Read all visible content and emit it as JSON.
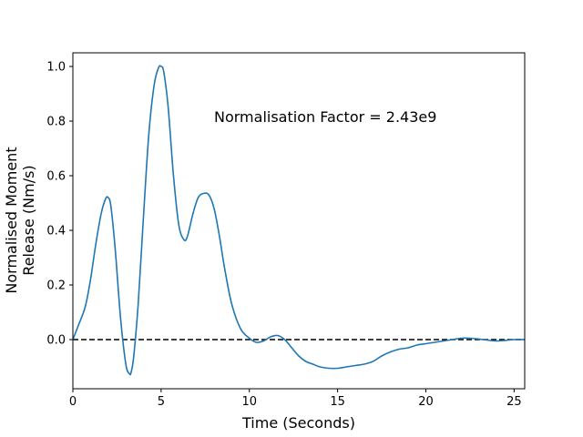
{
  "chart_data": {
    "type": "line",
    "xlabel": "Time (Seconds)",
    "ylabel_lines": [
      "Normalised Moment",
      "Release (Nm/s)"
    ],
    "annotation": "Normalisation Factor = 2.43e9",
    "xlim": [
      0,
      25.6
    ],
    "ylim": [
      -0.18,
      1.05
    ],
    "xticks": [
      0,
      5,
      10,
      15,
      20,
      25
    ],
    "yticks": [
      0.0,
      0.2,
      0.4,
      0.6,
      0.8,
      1.0
    ],
    "xtick_labels": [
      "0",
      "5",
      "10",
      "15",
      "20",
      "25"
    ],
    "ytick_labels": [
      "0.0",
      "0.2",
      "0.4",
      "0.6",
      "0.8",
      "1.0"
    ],
    "grid": false,
    "reference_line": {
      "y": 0,
      "style": "dashed",
      "color": "#000000"
    },
    "series": [
      {
        "color": "#1f77b4",
        "x": [
          0,
          0.3,
          0.7,
          1.0,
          1.3,
          1.6,
          1.85,
          2.0,
          2.15,
          2.4,
          2.7,
          3.0,
          3.2,
          3.3,
          3.45,
          3.7,
          4.0,
          4.3,
          4.6,
          4.85,
          5.0,
          5.15,
          5.4,
          5.7,
          6.0,
          6.3,
          6.5,
          6.8,
          7.1,
          7.4,
          7.7,
          8.0,
          8.3,
          8.6,
          9.0,
          9.5,
          10.0,
          10.4,
          10.8,
          11.2,
          11.6,
          12.0,
          12.4,
          12.8,
          13.2,
          13.6,
          14.0,
          14.5,
          15.0,
          15.5,
          16.0,
          16.5,
          17.0,
          17.5,
          18.0,
          18.5,
          19.0,
          19.5,
          20.0,
          20.5,
          21.0,
          21.5,
          22.0,
          22.5,
          23.0,
          23.5,
          24.0,
          24.5,
          25.0,
          25.6
        ],
        "y": [
          0.0,
          0.05,
          0.12,
          0.22,
          0.35,
          0.46,
          0.515,
          0.52,
          0.49,
          0.33,
          0.08,
          -0.09,
          -0.125,
          -0.12,
          -0.06,
          0.13,
          0.45,
          0.75,
          0.93,
          0.995,
          1.0,
          0.98,
          0.85,
          0.6,
          0.42,
          0.365,
          0.38,
          0.46,
          0.52,
          0.535,
          0.53,
          0.48,
          0.38,
          0.26,
          0.13,
          0.04,
          0.005,
          -0.01,
          -0.005,
          0.01,
          0.015,
          0.0,
          -0.03,
          -0.06,
          -0.08,
          -0.09,
          -0.1,
          -0.105,
          -0.105,
          -0.1,
          -0.095,
          -0.09,
          -0.08,
          -0.06,
          -0.045,
          -0.035,
          -0.03,
          -0.02,
          -0.015,
          -0.01,
          -0.005,
          0.0,
          0.005,
          0.005,
          0.002,
          -0.002,
          -0.005,
          -0.003,
          0.0,
          0.0
        ]
      }
    ]
  }
}
